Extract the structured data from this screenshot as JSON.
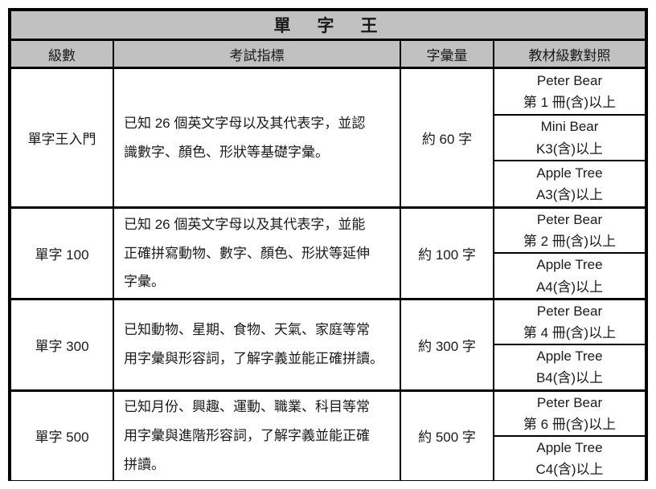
{
  "title": "單　字　王",
  "columns": {
    "level": "級數",
    "indicator": "考試指標",
    "vocab": "字彙量",
    "materials": "教材級數對照"
  },
  "rows": [
    {
      "level": "單字王入門",
      "indicator": "已知 26 個英文字母以及其代表字，並認\n識數字、顏色、形狀等基礎字彙。",
      "vocab": "約 60 字",
      "materials": [
        {
          "name": "Peter Bear",
          "grade": "第 1 冊(含)以上"
        },
        {
          "name": "Mini Bear",
          "grade": "K3(含)以上"
        },
        {
          "name": "Apple Tree",
          "grade": "A3(含)以上"
        }
      ]
    },
    {
      "level": "單字 100",
      "indicator": "已知 26 個英文字母以及其代表字，並能\n正確拼寫動物、數字、顏色、形狀等延伸\n字彙。",
      "vocab": "約 100 字",
      "materials": [
        {
          "name": "Peter Bear",
          "grade": "第 2 冊(含)以上"
        },
        {
          "name": "Apple Tree",
          "grade": "A4(含)以上"
        }
      ]
    },
    {
      "level": "單字 300",
      "indicator": "已知動物、星期、食物、天氣、家庭等常\n用字彙與形容詞，了解字義並能正確拼讀。",
      "vocab": "約 300 字",
      "materials": [
        {
          "name": "Peter Bear",
          "grade": "第 4 冊(含)以上"
        },
        {
          "name": "Apple Tree",
          "grade": "B4(含)以上"
        }
      ]
    },
    {
      "level": "單字 500",
      "indicator": "已知月份、興趣、運動、職業、科目等常\n用字彙與進階形容詞，了解字義並能正確\n拼讀。",
      "vocab": "約 500 字",
      "materials": [
        {
          "name": "Peter Bear",
          "grade": "第 6 冊(含)以上"
        },
        {
          "name": "Apple Tree",
          "grade": "C4(含)以上"
        }
      ]
    }
  ],
  "colors": {
    "header_bg": "#c1c1c1",
    "border": "#000000",
    "text": "#1a1a1a"
  }
}
